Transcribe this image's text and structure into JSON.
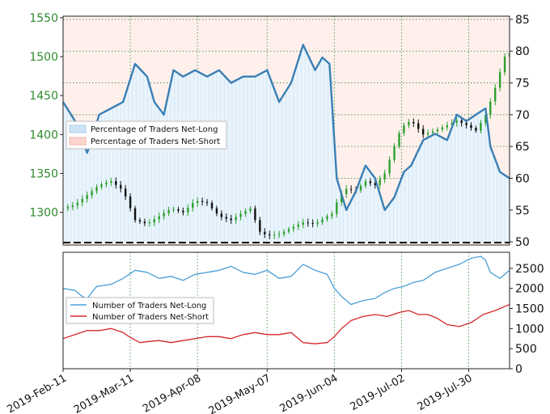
{
  "chart_data": [
    {
      "type": "candlestick+line",
      "panel": "top",
      "price_axis_left": {
        "ticks": [
          1300,
          1350,
          1400,
          1450,
          1500,
          1550
        ],
        "range": [
          1258,
          1552
        ]
      },
      "percent_axis_right": {
        "ticks": [
          50,
          55,
          60,
          65,
          70,
          75,
          80,
          85
        ],
        "range": [
          49.5,
          85.5
        ]
      },
      "x_ticks": [
        "2019-Feb-11",
        "2019-Mar-11",
        "2019-Apr-08",
        "2019-May-07",
        "2019-Jun-04",
        "2019-Jul-02",
        "2019-Jul-30"
      ],
      "x_tick_day_index": [
        0,
        28,
        56,
        85,
        113,
        141,
        169
      ],
      "legend": {
        "placement": "left-middle",
        "entries": [
          "Percentage of Traders Net-Long",
          "Percentage of Traders Net-Short"
        ]
      },
      "price_points": [
        [
          0,
          1305
        ],
        [
          5,
          1310
        ],
        [
          10,
          1322
        ],
        [
          15,
          1335
        ],
        [
          20,
          1340
        ],
        [
          25,
          1328
        ],
        [
          30,
          1290
        ],
        [
          35,
          1285
        ],
        [
          40,
          1295
        ],
        [
          45,
          1305
        ],
        [
          50,
          1300
        ],
        [
          55,
          1315
        ],
        [
          60,
          1312
        ],
        [
          65,
          1295
        ],
        [
          70,
          1290
        ],
        [
          75,
          1300
        ],
        [
          78,
          1305
        ],
        [
          82,
          1275
        ],
        [
          85,
          1270
        ],
        [
          90,
          1272
        ],
        [
          95,
          1280
        ],
        [
          100,
          1287
        ],
        [
          105,
          1285
        ],
        [
          110,
          1295
        ],
        [
          112,
          1298
        ],
        [
          115,
          1320
        ],
        [
          118,
          1330
        ],
        [
          122,
          1328
        ],
        [
          126,
          1340
        ],
        [
          130,
          1335
        ],
        [
          134,
          1350
        ],
        [
          138,
          1385
        ],
        [
          141,
          1410
        ],
        [
          145,
          1418
        ],
        [
          150,
          1400
        ],
        [
          155,
          1405
        ],
        [
          160,
          1412
        ],
        [
          164,
          1418
        ],
        [
          168,
          1412
        ],
        [
          172,
          1405
        ],
        [
          176,
          1425
        ],
        [
          180,
          1460
        ],
        [
          184,
          1500
        ],
        [
          186,
          1505
        ]
      ],
      "pct_long_points": [
        [
          0,
          72
        ],
        [
          5,
          69
        ],
        [
          8,
          66
        ],
        [
          10,
          64
        ],
        [
          12,
          66
        ],
        [
          15,
          70
        ],
        [
          20,
          71
        ],
        [
          25,
          72
        ],
        [
          30,
          78
        ],
        [
          35,
          76
        ],
        [
          38,
          72
        ],
        [
          42,
          70
        ],
        [
          46,
          77
        ],
        [
          50,
          76
        ],
        [
          55,
          77
        ],
        [
          60,
          76
        ],
        [
          65,
          77
        ],
        [
          70,
          75
        ],
        [
          75,
          76
        ],
        [
          80,
          76
        ],
        [
          85,
          77
        ],
        [
          90,
          72
        ],
        [
          95,
          75
        ],
        [
          100,
          81
        ],
        [
          105,
          77
        ],
        [
          108,
          79
        ],
        [
          111,
          78
        ],
        [
          114,
          60
        ],
        [
          118,
          55
        ],
        [
          122,
          58
        ],
        [
          126,
          62
        ],
        [
          130,
          60
        ],
        [
          134,
          55
        ],
        [
          138,
          57
        ],
        [
          142,
          61
        ],
        [
          145,
          62
        ],
        [
          150,
          66
        ],
        [
          155,
          67
        ],
        [
          160,
          66
        ],
        [
          164,
          70
        ],
        [
          168,
          69
        ],
        [
          172,
          70
        ],
        [
          176,
          71
        ],
        [
          178,
          65
        ],
        [
          182,
          61
        ],
        [
          186,
          60
        ]
      ],
      "pct_short_band": [
        50,
        85
      ]
    },
    {
      "type": "line",
      "panel": "bottom",
      "y_axis_right": {
        "ticks": [
          0,
          500,
          1000,
          1500,
          2000,
          2500
        ],
        "range": [
          0,
          2900
        ]
      },
      "legend": {
        "placement": "left-middle",
        "entries": [
          "Number of Traders Net-Long",
          "Number of Traders Net-Short"
        ]
      },
      "series": [
        {
          "name": "Number of Traders Net-Long",
          "color": "#4a9fd8",
          "points": [
            [
              0,
              2000
            ],
            [
              5,
              1950
            ],
            [
              8,
              1800
            ],
            [
              10,
              1750
            ],
            [
              14,
              2050
            ],
            [
              20,
              2100
            ],
            [
              25,
              2250
            ],
            [
              30,
              2450
            ],
            [
              35,
              2400
            ],
            [
              40,
              2250
            ],
            [
              45,
              2300
            ],
            [
              50,
              2200
            ],
            [
              55,
              2350
            ],
            [
              60,
              2400
            ],
            [
              65,
              2450
            ],
            [
              70,
              2550
            ],
            [
              75,
              2400
            ],
            [
              80,
              2350
            ],
            [
              85,
              2450
            ],
            [
              90,
              2250
            ],
            [
              95,
              2300
            ],
            [
              100,
              2600
            ],
            [
              105,
              2450
            ],
            [
              110,
              2350
            ],
            [
              113,
              2000
            ],
            [
              116,
              1800
            ],
            [
              120,
              1600
            ],
            [
              125,
              1700
            ],
            [
              130,
              1750
            ],
            [
              134,
              1900
            ],
            [
              138,
              2000
            ],
            [
              142,
              2050
            ],
            [
              146,
              2150
            ],
            [
              150,
              2200
            ],
            [
              155,
              2400
            ],
            [
              160,
              2500
            ],
            [
              165,
              2600
            ],
            [
              170,
              2750
            ],
            [
              174,
              2800
            ],
            [
              176,
              2700
            ],
            [
              178,
              2400
            ],
            [
              182,
              2250
            ],
            [
              186,
              2450
            ]
          ]
        },
        {
          "name": "Number of Traders Net-Short",
          "color": "#d62728",
          "points": [
            [
              0,
              750
            ],
            [
              5,
              850
            ],
            [
              10,
              950
            ],
            [
              15,
              950
            ],
            [
              20,
              1000
            ],
            [
              25,
              900
            ],
            [
              28,
              780
            ],
            [
              32,
              650
            ],
            [
              36,
              680
            ],
            [
              40,
              700
            ],
            [
              45,
              650
            ],
            [
              50,
              700
            ],
            [
              55,
              750
            ],
            [
              60,
              800
            ],
            [
              65,
              800
            ],
            [
              70,
              750
            ],
            [
              75,
              850
            ],
            [
              80,
              900
            ],
            [
              85,
              850
            ],
            [
              90,
              850
            ],
            [
              95,
              900
            ],
            [
              100,
              650
            ],
            [
              105,
              620
            ],
            [
              110,
              650
            ],
            [
              113,
              800
            ],
            [
              116,
              1000
            ],
            [
              120,
              1200
            ],
            [
              125,
              1300
            ],
            [
              130,
              1350
            ],
            [
              135,
              1300
            ],
            [
              140,
              1400
            ],
            [
              144,
              1450
            ],
            [
              148,
              1350
            ],
            [
              152,
              1350
            ],
            [
              156,
              1250
            ],
            [
              160,
              1100
            ],
            [
              165,
              1050
            ],
            [
              170,
              1150
            ],
            [
              175,
              1350
            ],
            [
              180,
              1450
            ],
            [
              186,
              1600
            ]
          ]
        }
      ]
    }
  ]
}
